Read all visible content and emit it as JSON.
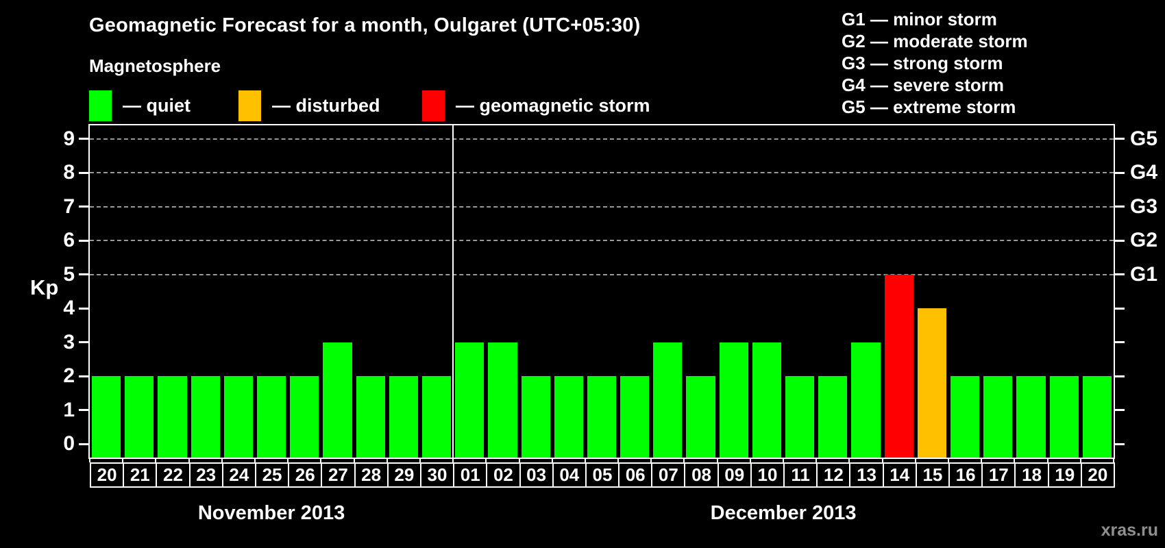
{
  "title": "Geomagnetic Forecast for a month, Oulgaret (UTC+05:30)",
  "subtitle": "Magnetosphere",
  "legend": {
    "items": [
      {
        "key": "quiet",
        "label": "— quiet",
        "color": "#00ff00"
      },
      {
        "key": "disturbed",
        "label": "— disturbed",
        "color": "#ffc000"
      },
      {
        "key": "storm",
        "label": "— geomagnetic storm",
        "color": "#ff0000"
      }
    ]
  },
  "g_legend": [
    "G1 — minor storm",
    "G2 — moderate storm",
    "G3 — strong storm",
    "G4 — severe storm",
    "G5 — extreme storm"
  ],
  "watermark": "xras.ru",
  "chart_data": {
    "type": "bar",
    "ylabel": "Kp",
    "ylim": [
      -0.4,
      9.4
    ],
    "y_ticks": [
      0,
      1,
      2,
      3,
      4,
      5,
      6,
      7,
      8,
      9
    ],
    "grid_levels": [
      5,
      6,
      7,
      8,
      9
    ],
    "right_labels": {
      "5": "G1",
      "6": "G2",
      "7": "G3",
      "8": "G4",
      "9": "G5"
    },
    "colors": {
      "quiet": "#00ff00",
      "disturbed": "#ffc000",
      "storm": "#ff0000"
    },
    "sections": [
      {
        "label": "November 2013",
        "bars": [
          {
            "day": "20",
            "kp": 2,
            "condition": "quiet"
          },
          {
            "day": "21",
            "kp": 2,
            "condition": "quiet"
          },
          {
            "day": "22",
            "kp": 2,
            "condition": "quiet"
          },
          {
            "day": "23",
            "kp": 2,
            "condition": "quiet"
          },
          {
            "day": "24",
            "kp": 2,
            "condition": "quiet"
          },
          {
            "day": "25",
            "kp": 2,
            "condition": "quiet"
          },
          {
            "day": "26",
            "kp": 2,
            "condition": "quiet"
          },
          {
            "day": "27",
            "kp": 3,
            "condition": "quiet"
          },
          {
            "day": "28",
            "kp": 2,
            "condition": "quiet"
          },
          {
            "day": "29",
            "kp": 2,
            "condition": "quiet"
          },
          {
            "day": "30",
            "kp": 2,
            "condition": "quiet"
          }
        ]
      },
      {
        "label": "December 2013",
        "bars": [
          {
            "day": "01",
            "kp": 3,
            "condition": "quiet"
          },
          {
            "day": "02",
            "kp": 3,
            "condition": "quiet"
          },
          {
            "day": "03",
            "kp": 2,
            "condition": "quiet"
          },
          {
            "day": "04",
            "kp": 2,
            "condition": "quiet"
          },
          {
            "day": "05",
            "kp": 2,
            "condition": "quiet"
          },
          {
            "day": "06",
            "kp": 2,
            "condition": "quiet"
          },
          {
            "day": "07",
            "kp": 3,
            "condition": "quiet"
          },
          {
            "day": "08",
            "kp": 2,
            "condition": "quiet"
          },
          {
            "day": "09",
            "kp": 3,
            "condition": "quiet"
          },
          {
            "day": "10",
            "kp": 3,
            "condition": "quiet"
          },
          {
            "day": "11",
            "kp": 2,
            "condition": "quiet"
          },
          {
            "day": "12",
            "kp": 2,
            "condition": "quiet"
          },
          {
            "day": "13",
            "kp": 3,
            "condition": "quiet"
          },
          {
            "day": "14",
            "kp": 5,
            "condition": "storm"
          },
          {
            "day": "15",
            "kp": 4,
            "condition": "disturbed"
          },
          {
            "day": "16",
            "kp": 2,
            "condition": "quiet"
          },
          {
            "day": "17",
            "kp": 2,
            "condition": "quiet"
          },
          {
            "day": "18",
            "kp": 2,
            "condition": "quiet"
          },
          {
            "day": "19",
            "kp": 2,
            "condition": "quiet"
          },
          {
            "day": "20",
            "kp": 2,
            "condition": "quiet"
          }
        ]
      }
    ]
  }
}
